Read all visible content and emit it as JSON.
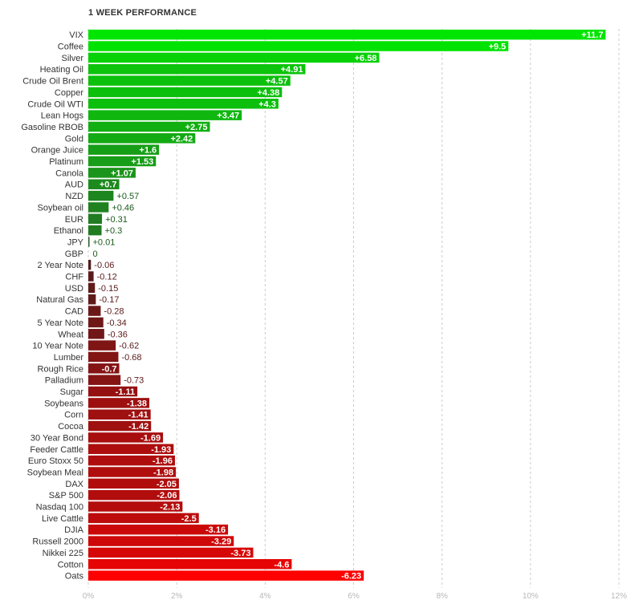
{
  "chart_data": {
    "type": "bar",
    "orientation": "horizontal",
    "title": "1 WEEK PERFORMANCE",
    "xlim": [
      0,
      12
    ],
    "x_ticks": [
      0,
      2,
      4,
      6,
      8,
      10,
      12
    ],
    "x_tick_labels": [
      "0%",
      "2%",
      "4%",
      "6%",
      "8%",
      "10%",
      "12%"
    ],
    "grid": "vertical dashed",
    "categories": [
      "VIX",
      "Coffee",
      "Silver",
      "Heating Oil",
      "Crude Oil Brent",
      "Copper",
      "Crude Oil WTI",
      "Lean Hogs",
      "Gasoline RBOB",
      "Gold",
      "Orange Juice",
      "Platinum",
      "Canola",
      "AUD",
      "NZD",
      "Soybean oil",
      "EUR",
      "Ethanol",
      "JPY",
      "GBP",
      "2 Year Note",
      "CHF",
      "USD",
      "Natural Gas",
      "CAD",
      "5 Year Note",
      "Wheat",
      "10 Year Note",
      "Lumber",
      "Rough Rice",
      "Palladium",
      "Sugar",
      "Soybeans",
      "Corn",
      "Cocoa",
      "30 Year Bond",
      "Feeder Cattle",
      "Euro Stoxx 50",
      "Soybean Meal",
      "DAX",
      "S&P 500",
      "Nasdaq 100",
      "Live Cattle",
      "DJIA",
      "Russell 2000",
      "Nikkei 225",
      "Cotton",
      "Oats"
    ],
    "values": [
      11.7,
      9.5,
      6.58,
      4.91,
      4.57,
      4.38,
      4.3,
      3.47,
      2.75,
      2.42,
      1.6,
      1.53,
      1.07,
      0.7,
      0.57,
      0.46,
      0.31,
      0.3,
      0.01,
      0,
      -0.06,
      -0.12,
      -0.15,
      -0.17,
      -0.28,
      -0.34,
      -0.36,
      -0.62,
      -0.68,
      -0.7,
      -0.73,
      -1.11,
      -1.38,
      -1.41,
      -1.42,
      -1.69,
      -1.93,
      -1.96,
      -1.98,
      -2.05,
      -2.06,
      -2.13,
      -2.5,
      -3.16,
      -3.29,
      -3.73,
      -4.6,
      -6.23
    ],
    "value_labels": [
      "+11.7",
      "+9.5",
      "+6.58",
      "+4.91",
      "+4.57",
      "+4.38",
      "+4.3",
      "+3.47",
      "+2.75",
      "+2.42",
      "+1.6",
      "+1.53",
      "+1.07",
      "+0.7",
      "+0.57",
      "+0.46",
      "+0.31",
      "+0.3",
      "+0.01",
      "0",
      "-0.06",
      "-0.12",
      "-0.15",
      "-0.17",
      "-0.28",
      "-0.34",
      "-0.36",
      "-0.62",
      "-0.68",
      "-0.7",
      "-0.73",
      "-1.11",
      "-1.38",
      "-1.41",
      "-1.42",
      "-1.69",
      "-1.93",
      "-1.96",
      "-1.98",
      "-2.05",
      "-2.06",
      "-2.13",
      "-2.5",
      "-3.16",
      "-3.29",
      "-3.73",
      "-4.6",
      "-6.23"
    ],
    "bar_length": "absolute value",
    "colors": {
      "positive_strong": "#00e600",
      "positive_weak": "#2f4f2f",
      "negative_weak": "#3a2020",
      "negative_strong": "#ff0000",
      "grid": "#cccccc",
      "tick_label": "#b8b8b8"
    }
  }
}
